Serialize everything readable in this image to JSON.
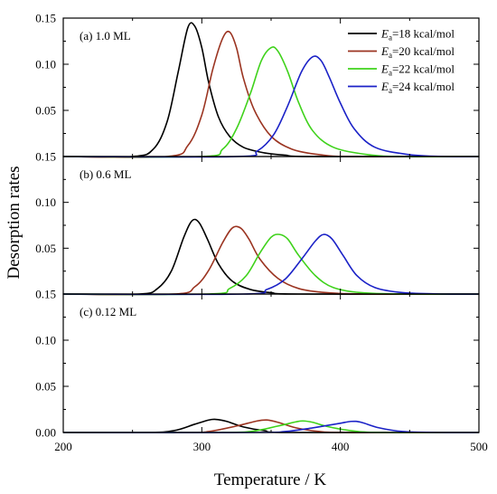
{
  "chart_data": {
    "type": "line",
    "xlabel": "Temperature / K",
    "ylabel": "Desorption rates",
    "xlim": [
      200,
      500
    ],
    "x_ticks": [
      "200",
      "300",
      "400",
      "500"
    ],
    "y_ticks": [
      "0.15",
      "0.10",
      "0.05",
      "0.00"
    ],
    "ylim": [
      0,
      0.15
    ],
    "grid": false,
    "legend_position": "top-right",
    "legend": [
      {
        "prefix": "E",
        "subscript": "a",
        "suffix": "=18 kcal/mol",
        "color": "#000000"
      },
      {
        "prefix": "E",
        "subscript": "a",
        "suffix": "=20 kcal/mol",
        "color": "#9b3421"
      },
      {
        "prefix": "E",
        "subscript": "a",
        "suffix": "=22 kcal/mol",
        "color": "#3fd21b"
      },
      {
        "prefix": "E",
        "subscript": "a",
        "suffix": "=24 kcal/mol",
        "color": "#1b22c7"
      }
    ],
    "panels": [
      {
        "label": "(a) 1.0 ML",
        "series": [
          {
            "color": "#000000",
            "x": [
              250,
              265,
              275,
              283,
              290,
              295,
              300,
              305,
              312,
              320,
              330,
              345,
              360,
              380
            ],
            "values": [
              0.0,
              0.008,
              0.038,
              0.092,
              0.14,
              0.141,
              0.118,
              0.08,
              0.043,
              0.022,
              0.01,
              0.004,
              0.0015,
              0.0
            ]
          },
          {
            "color": "#9b3421",
            "x": [
              275,
              290,
              300,
              308,
              315,
              320,
              325,
              330,
              338,
              350,
              365,
              385,
              410
            ],
            "values": [
              0.0,
              0.012,
              0.045,
              0.095,
              0.128,
              0.135,
              0.118,
              0.085,
              0.05,
              0.022,
              0.008,
              0.002,
              0.0
            ]
          },
          {
            "color": "#3fd21b",
            "x": [
              300,
              315,
              325,
              335,
              343,
              350,
              355,
              362,
              370,
              380,
              395,
              420,
              445
            ],
            "values": [
              0.0,
              0.008,
              0.03,
              0.068,
              0.104,
              0.118,
              0.114,
              0.092,
              0.058,
              0.028,
              0.01,
              0.002,
              0.0
            ]
          },
          {
            "color": "#1b22c7",
            "x": [
              325,
              340,
              352,
              362,
              372,
              380,
              386,
              392,
              400,
              410,
              425,
              450,
              475
            ],
            "values": [
              0.0,
              0.006,
              0.024,
              0.055,
              0.092,
              0.108,
              0.104,
              0.086,
              0.058,
              0.03,
              0.01,
              0.002,
              0.0
            ]
          }
        ]
      },
      {
        "label": "(b) 0.6 ML",
        "series": [
          {
            "color": "#000000",
            "x": [
              255,
              268,
              278,
              287,
              293,
              298,
              304,
              312,
              322,
              335,
              350,
              370
            ],
            "values": [
              0.0,
              0.006,
              0.025,
              0.062,
              0.08,
              0.078,
              0.06,
              0.033,
              0.014,
              0.005,
              0.0015,
              0.0
            ]
          },
          {
            "color": "#9b3421",
            "x": [
              280,
              295,
              305,
              315,
              322,
              328,
              334,
              342,
              355,
              370,
              390,
              420
            ],
            "values": [
              0.0,
              0.008,
              0.026,
              0.056,
              0.072,
              0.072,
              0.06,
              0.038,
              0.017,
              0.006,
              0.0015,
              0.0
            ]
          },
          {
            "color": "#3fd21b",
            "x": [
              305,
              320,
              332,
              342,
              350,
              356,
              362,
              370,
              382,
              395,
              415,
              445
            ],
            "values": [
              0.0,
              0.006,
              0.02,
              0.045,
              0.062,
              0.065,
              0.06,
              0.042,
              0.02,
              0.007,
              0.0015,
              0.0
            ]
          },
          {
            "color": "#1b22c7",
            "x": [
              330,
              347,
              360,
              372,
              382,
              388,
              394,
              402,
              412,
              425,
              445,
              475
            ],
            "values": [
              0.0,
              0.005,
              0.016,
              0.038,
              0.058,
              0.065,
              0.06,
              0.042,
              0.02,
              0.007,
              0.0015,
              0.0
            ]
          }
        ]
      },
      {
        "label": "(c) 0.12 ML",
        "series": [
          {
            "color": "#000000",
            "x": [
              260,
              280,
              295,
              305,
              310,
              318,
              330,
              345,
              365
            ],
            "values": [
              0.0,
              0.002,
              0.009,
              0.0135,
              0.0142,
              0.012,
              0.006,
              0.002,
              0.0
            ]
          },
          {
            "color": "#9b3421",
            "x": [
              285,
              305,
              325,
              340,
              347,
              355,
              368,
              385,
              405
            ],
            "values": [
              0.0,
              0.001,
              0.007,
              0.0125,
              0.0135,
              0.011,
              0.005,
              0.001,
              0.0
            ]
          },
          {
            "color": "#3fd21b",
            "x": [
              310,
              335,
              355,
              368,
              373,
              380,
              392,
              410,
              430
            ],
            "values": [
              0.0,
              0.001,
              0.007,
              0.0115,
              0.0125,
              0.011,
              0.006,
              0.0015,
              0.0
            ]
          },
          {
            "color": "#1b22c7",
            "x": [
              335,
              360,
              380,
              398,
              408,
              415,
              428,
              445,
              470
            ],
            "values": [
              0.0,
              0.001,
              0.005,
              0.0095,
              0.012,
              0.011,
              0.005,
              0.001,
              0.0
            ]
          }
        ]
      }
    ]
  }
}
